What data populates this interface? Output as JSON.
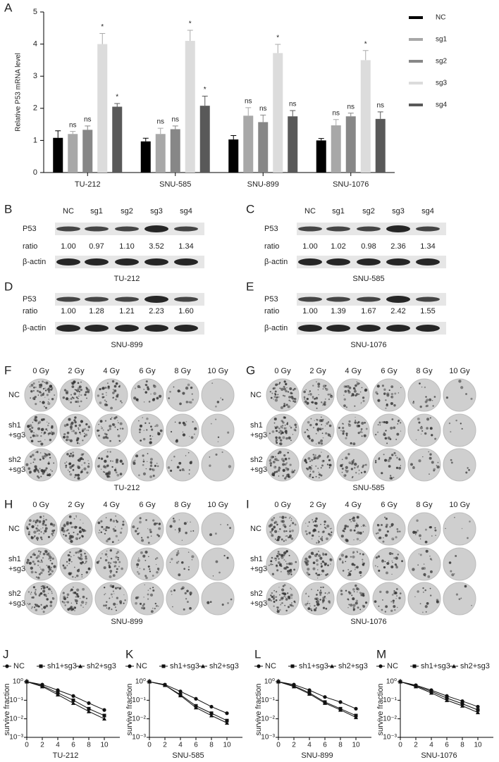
{
  "chart_data": [
    {
      "type": "bar",
      "label": "A",
      "ylabel": "Relative P53 mRNA level",
      "categories": [
        "TU-212",
        "SNU-585",
        "SNU-899",
        "SNU-1076"
      ],
      "series": [
        {
          "name": "NC",
          "color": "#000000",
          "values": [
            1.08,
            0.97,
            1.03,
            1.0
          ],
          "errors": [
            0.22,
            0.1,
            0.12,
            0.06
          ],
          "annotations": [
            null,
            null,
            null,
            null
          ]
        },
        {
          "name": "sg1",
          "color": "#a8a8a8",
          "values": [
            1.2,
            1.2,
            1.77,
            1.47
          ],
          "errors": [
            0.08,
            0.18,
            0.25,
            0.18
          ],
          "annotations": [
            "ns",
            "ns",
            "ns",
            "ns"
          ]
        },
        {
          "name": "sg2",
          "color": "#878787",
          "values": [
            1.33,
            1.35,
            1.57,
            1.75
          ],
          "errors": [
            0.12,
            0.1,
            0.22,
            0.1
          ],
          "annotations": [
            "ns",
            "ns",
            "ns",
            "ns"
          ]
        },
        {
          "name": "sg3",
          "color": "#dcdcdc",
          "values": [
            4.0,
            4.1,
            3.72,
            3.5
          ],
          "errors": [
            0.33,
            0.33,
            0.27,
            0.3
          ],
          "annotations": [
            "*",
            "*",
            "*",
            "*"
          ]
        },
        {
          "name": "sg4",
          "color": "#595959",
          "values": [
            2.05,
            2.08,
            1.75,
            1.67
          ],
          "errors": [
            0.1,
            0.3,
            0.18,
            0.22
          ],
          "annotations": [
            "*",
            "*",
            "ns",
            "ns"
          ]
        }
      ],
      "ylim": [
        0,
        5
      ],
      "yticks": [
        0,
        1,
        2,
        3,
        4,
        5
      ]
    },
    {
      "type": "line",
      "label": "J",
      "ylabel": "survive fraction",
      "xlabel": "TU-212",
      "log": true,
      "x": [
        0,
        2,
        4,
        6,
        8,
        10
      ],
      "xlim": [
        0,
        12
      ],
      "xticks": [
        0,
        2,
        4,
        6,
        8,
        10
      ],
      "ylim": [
        0.001,
        1
      ],
      "yticks": [
        {
          "value": 1,
          "label": "10⁰"
        },
        {
          "value": 0.1,
          "label": "10⁻¹"
        },
        {
          "value": 0.01,
          "label": "10⁻²"
        },
        {
          "value": 0.001,
          "label": "10⁻³"
        }
      ],
      "series": [
        {
          "name": "NC",
          "marker": "circle",
          "color": "#111111",
          "values": [
            1,
            0.7,
            0.35,
            0.17,
            0.07,
            0.03
          ]
        },
        {
          "name": "sh1+sg3",
          "marker": "square",
          "color": "#111111",
          "values": [
            1,
            0.6,
            0.25,
            0.1,
            0.035,
            0.015
          ]
        },
        {
          "name": "sh2+sg3",
          "marker": "triangle",
          "color": "#111111",
          "values": [
            1,
            0.55,
            0.2,
            0.07,
            0.025,
            0.01
          ]
        }
      ]
    },
    {
      "type": "line",
      "label": "K",
      "ylabel": "survive fraction",
      "xlabel": "SNU-585",
      "log": true,
      "x": [
        0,
        2,
        4,
        6,
        8,
        10
      ],
      "xlim": [
        0,
        12
      ],
      "xticks": [
        0,
        2,
        4,
        6,
        8,
        10
      ],
      "ylim": [
        0.001,
        1
      ],
      "yticks": [
        {
          "value": 1,
          "label": "10⁰"
        },
        {
          "value": 0.1,
          "label": "10⁻¹"
        },
        {
          "value": 0.01,
          "label": "10⁻²"
        },
        {
          "value": 0.001,
          "label": "10⁻³"
        }
      ],
      "series": [
        {
          "name": "NC",
          "marker": "circle",
          "color": "#111111",
          "values": [
            1,
            0.7,
            0.3,
            0.12,
            0.045,
            0.02
          ]
        },
        {
          "name": "sh1+sg3",
          "marker": "square",
          "color": "#111111",
          "values": [
            1,
            0.65,
            0.2,
            0.05,
            0.02,
            0.008
          ]
        },
        {
          "name": "sh2+sg3",
          "marker": "triangle",
          "color": "#111111",
          "values": [
            1,
            0.65,
            0.18,
            0.04,
            0.015,
            0.006
          ]
        }
      ]
    },
    {
      "type": "line",
      "label": "L",
      "ylabel": "survive fraction",
      "xlabel": "SNU-899",
      "log": true,
      "x": [
        0,
        2,
        4,
        6,
        8,
        10
      ],
      "xlim": [
        0,
        12
      ],
      "xticks": [
        0,
        2,
        4,
        6,
        8,
        10
      ],
      "ylim": [
        0.001,
        1
      ],
      "yticks": [
        {
          "value": 1,
          "label": "10⁰"
        },
        {
          "value": 0.1,
          "label": "10⁻¹"
        },
        {
          "value": 0.01,
          "label": "10⁻²"
        },
        {
          "value": 0.001,
          "label": "10⁻³"
        }
      ],
      "series": [
        {
          "name": "NC",
          "marker": "circle",
          "color": "#111111",
          "values": [
            1,
            0.7,
            0.35,
            0.15,
            0.08,
            0.035
          ]
        },
        {
          "name": "sh1+sg3",
          "marker": "square",
          "color": "#111111",
          "values": [
            1,
            0.6,
            0.25,
            0.08,
            0.035,
            0.015
          ]
        },
        {
          "name": "sh2+sg3",
          "marker": "triangle",
          "color": "#111111",
          "values": [
            1,
            0.55,
            0.22,
            0.07,
            0.03,
            0.012
          ]
        }
      ]
    },
    {
      "type": "line",
      "label": "M",
      "ylabel": "survive fraction",
      "xlabel": "SNU-1076",
      "log": true,
      "x": [
        0,
        2,
        4,
        6,
        8,
        10
      ],
      "xlim": [
        0,
        12
      ],
      "xticks": [
        0,
        2,
        4,
        6,
        8,
        10
      ],
      "ylim": [
        0.001,
        1
      ],
      "yticks": [
        {
          "value": 1,
          "label": "10⁰"
        },
        {
          "value": 0.1,
          "label": "10⁻¹"
        },
        {
          "value": 0.01,
          "label": "10⁻²"
        },
        {
          "value": 0.001,
          "label": "10⁻³"
        }
      ],
      "series": [
        {
          "name": "NC",
          "marker": "circle",
          "color": "#111111",
          "values": [
            1,
            0.65,
            0.35,
            0.17,
            0.09,
            0.045
          ]
        },
        {
          "name": "sh1+sg3",
          "marker": "square",
          "color": "#111111",
          "values": [
            1,
            0.6,
            0.3,
            0.13,
            0.065,
            0.03
          ]
        },
        {
          "name": "sh2+sg3",
          "marker": "triangle",
          "color": "#111111",
          "values": [
            1,
            0.55,
            0.25,
            0.1,
            0.05,
            0.022
          ]
        }
      ]
    }
  ],
  "blots": [
    {
      "label": "B",
      "lanes": [
        "NC",
        "sg1",
        "sg2",
        "sg3",
        "sg4"
      ],
      "rows": [
        "P53",
        "ratio",
        "β-actin"
      ],
      "ratios": [
        "1.00",
        "0.97",
        "1.10",
        "3.52",
        "1.34"
      ],
      "cell_line": "TU-212"
    },
    {
      "label": "C",
      "lanes": [
        "NC",
        "sg1",
        "sg2",
        "sg3",
        "sg4"
      ],
      "rows": [
        "P53",
        "ratio",
        "β-actin"
      ],
      "ratios": [
        "1.00",
        "1.02",
        "0.98",
        "2.36",
        "1.34"
      ],
      "cell_line": "SNU-585"
    },
    {
      "label": "D",
      "rows": [
        "P53",
        "ratio",
        "β-actin"
      ],
      "ratios": [
        "1.00",
        "1.28",
        "1.21",
        "2.23",
        "1.60"
      ],
      "cell_line": "SNU-899"
    },
    {
      "label": "E",
      "rows": [
        "P53",
        "ratio",
        "β-actin"
      ],
      "ratios": [
        "1.00",
        "1.39",
        "1.67",
        "2.42",
        "1.55"
      ],
      "cell_line": "SNU-1076"
    }
  ],
  "colonies": [
    {
      "label": "F",
      "doses": [
        "0 Gy",
        "2 Gy",
        "4 Gy",
        "6 Gy",
        "8 Gy",
        "10 Gy"
      ],
      "rows": [
        [
          "NC"
        ],
        [
          "sh1",
          "+sg3"
        ],
        [
          "sh2",
          "+sg3"
        ]
      ],
      "cell_line": "TU-212"
    },
    {
      "label": "G",
      "doses": [
        "0 Gy",
        "2 Gy",
        "4 Gy",
        "6 Gy",
        "8 Gy",
        "10 Gy"
      ],
      "rows": [
        [
          "NC"
        ],
        [
          "sh1",
          "+sg3"
        ],
        [
          "sh2",
          "+sg3"
        ]
      ],
      "cell_line": "SNU-585"
    },
    {
      "label": "H",
      "doses": [
        "0 Gy",
        "2 Gy",
        "4 Gy",
        "6 Gy",
        "8 Gy",
        "10 Gy"
      ],
      "rows": [
        [
          "NC"
        ],
        [
          "sh1",
          "+sg3"
        ],
        [
          "sh2",
          "+sg3"
        ]
      ],
      "cell_line": "SNU-899"
    },
    {
      "label": "I",
      "doses": [
        "0 Gy",
        "2 Gy",
        "4 Gy",
        "6 Gy",
        "8 Gy",
        "10 Gy"
      ],
      "rows": [
        [
          "NC"
        ],
        [
          "sh1",
          "+sg3"
        ],
        [
          "sh2",
          "+sg3"
        ]
      ],
      "cell_line": "SNU-1076"
    }
  ]
}
